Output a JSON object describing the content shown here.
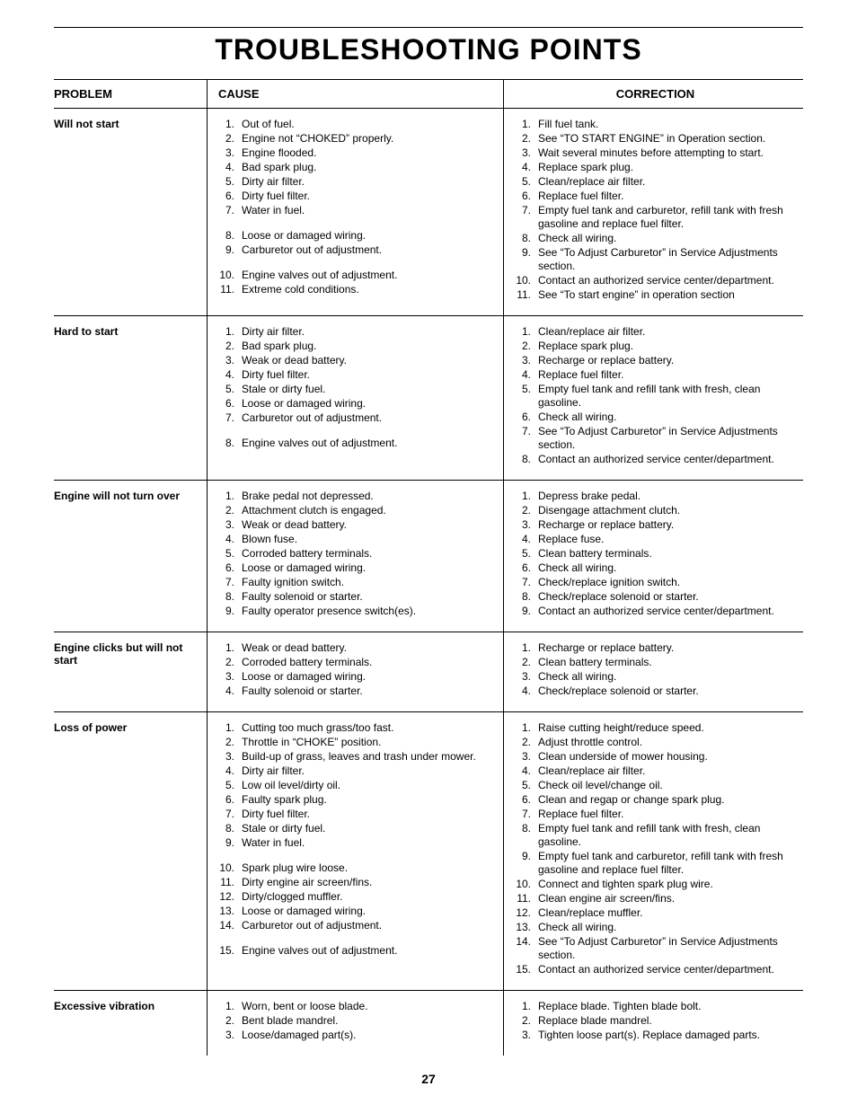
{
  "title": "TROUBLESHOOTING POINTS",
  "page_number": "27",
  "headers": {
    "problem": "PROBLEM",
    "cause": "CAUSE",
    "correction": "CORRECTION"
  },
  "sections": [
    {
      "problem": "Will not start",
      "causes": [
        "Out of fuel.",
        "Engine not “CHOKED” properly.",
        "Engine flooded.",
        "Bad spark plug.",
        "Dirty air filter.",
        "Dirty fuel filter.",
        "Water in fuel.",
        "",
        "Loose or damaged wiring.",
        "Carburetor out of adjustment.",
        "",
        "Engine valves out of adjustment.",
        "Extreme cold conditions."
      ],
      "cause_nums": [
        "1.",
        "2.",
        "3.",
        "4.",
        "5.",
        "6.",
        "7.",
        "",
        "8.",
        "9.",
        "",
        "10.",
        "11."
      ],
      "corrections": [
        "Fill fuel tank.",
        "See “TO START ENGINE” in Operation section.",
        "Wait several minutes before attempting to start.",
        "Replace spark plug.",
        "Clean/replace air filter.",
        "Replace fuel filter.",
        "Empty fuel tank and carburetor, refill tank with fresh gasoline and replace fuel filter.",
        "Check all wiring.",
        "See “To Adjust Carburetor” in Service Adjustments section.",
        "Contact an authorized service center/department.",
        "See “To start engine” in operation section"
      ],
      "corr_nums": [
        "1.",
        "2.",
        "3.",
        "4.",
        "5.",
        "6.",
        "7.",
        "8.",
        "9.",
        "10.",
        "11."
      ]
    },
    {
      "problem": "Hard to start",
      "causes": [
        "Dirty air filter.",
        "Bad spark plug.",
        "Weak or dead battery.",
        "Dirty fuel filter.",
        "Stale or dirty fuel.",
        "Loose or damaged wiring.",
        "Carburetor out of adjustment.",
        "",
        "Engine valves out of adjustment."
      ],
      "cause_nums": [
        "1.",
        "2.",
        "3.",
        "4.",
        "5.",
        "6.",
        "7.",
        "",
        "8."
      ],
      "corrections": [
        "Clean/replace air filter.",
        "Replace spark plug.",
        "Recharge or replace battery.",
        "Replace fuel filter.",
        "Empty fuel tank and refill tank with fresh, clean gasoline.",
        "Check all wiring.",
        "See “To Adjust Carburetor” in Service Adjustments section.",
        "Contact an authorized service center/department."
      ],
      "corr_nums": [
        "1.",
        "2.",
        "3.",
        "4.",
        "5.",
        "6.",
        "7.",
        "8."
      ]
    },
    {
      "problem": "Engine will not turn over",
      "causes": [
        "Brake pedal not depressed.",
        "Attachment clutch is engaged.",
        "Weak or dead battery.",
        "Blown fuse.",
        "Corroded battery terminals.",
        "Loose or damaged wiring.",
        "Faulty ignition switch.",
        "Faulty solenoid or starter.",
        "Faulty operator presence switch(es)."
      ],
      "cause_nums": [
        "1.",
        "2.",
        "3.",
        "4.",
        "5.",
        "6.",
        "7.",
        "8.",
        "9."
      ],
      "corrections": [
        "Depress brake pedal.",
        "Disengage attachment clutch.",
        "Recharge or replace battery.",
        "Replace fuse.",
        "Clean battery terminals.",
        "Check all wiring.",
        "Check/replace ignition switch.",
        "Check/replace solenoid or starter.",
        "Contact an authorized service center/department."
      ],
      "corr_nums": [
        "1.",
        "2.",
        "3.",
        "4.",
        "5.",
        "6.",
        "7.",
        "8.",
        "9."
      ]
    },
    {
      "problem": "Engine clicks but will not start",
      "causes": [
        "Weak or dead battery.",
        "Corroded battery terminals.",
        "Loose or damaged wiring.",
        "Faulty solenoid or starter."
      ],
      "cause_nums": [
        "1.",
        "2.",
        "3.",
        "4."
      ],
      "corrections": [
        "Recharge or replace battery.",
        "Clean battery terminals.",
        "Check all wiring.",
        "Check/replace solenoid or starter."
      ],
      "corr_nums": [
        "1.",
        "2.",
        "3.",
        "4."
      ]
    },
    {
      "problem": "Loss of power",
      "causes": [
        "Cutting too much grass/too fast.",
        "Throttle in “CHOKE” position.",
        "Build-up of grass, leaves and trash under mower.",
        "Dirty air filter.",
        "Low oil level/dirty oil.",
        "Faulty spark plug.",
        "Dirty fuel filter.",
        "Stale or dirty fuel.",
        "Water in fuel.",
        "",
        "Spark plug wire loose.",
        "Dirty engine air screen/fins.",
        "Dirty/clogged muffler.",
        "Loose or damaged wiring.",
        "Carburetor out of adjustment.",
        "",
        "Engine valves out of adjustment."
      ],
      "cause_nums": [
        "1.",
        "2.",
        "3.",
        "4.",
        "5.",
        "6.",
        "7.",
        "8.",
        "9.",
        "",
        "10.",
        "11.",
        "12.",
        "13.",
        "14.",
        "",
        "15."
      ],
      "corrections": [
        "Raise cutting height/reduce speed.",
        "Adjust throttle control.",
        "Clean underside of mower housing.",
        "Clean/replace air filter.",
        "Check oil level/change oil.",
        "Clean and regap or change spark plug.",
        "Replace fuel filter.",
        "Empty fuel tank and refill tank with fresh, clean gasoline.",
        "Empty fuel tank and carburetor, refill tank with fresh gasoline and replace fuel filter.",
        "Connect and tighten spark plug wire.",
        "Clean engine air screen/fins.",
        "Clean/replace muffler.",
        "Check all wiring.",
        "See “To Adjust Carburetor” in Service Adjustments section.",
        "Contact an authorized service center/department."
      ],
      "corr_nums": [
        "1.",
        "2.",
        "3.",
        "4.",
        "5.",
        "6.",
        "7.",
        "8.",
        "9.",
        "10.",
        "11.",
        "12.",
        "13.",
        "14.",
        "15."
      ]
    },
    {
      "problem": "Excessive vibration",
      "causes": [
        "Worn, bent or loose blade.",
        "Bent blade mandrel.",
        "Loose/damaged part(s)."
      ],
      "cause_nums": [
        "1.",
        "2.",
        "3."
      ],
      "corrections": [
        "Replace blade.  Tighten blade bolt.",
        "Replace blade mandrel.",
        "Tighten loose part(s).  Replace damaged parts."
      ],
      "corr_nums": [
        "1.",
        "2.",
        "3."
      ]
    }
  ]
}
